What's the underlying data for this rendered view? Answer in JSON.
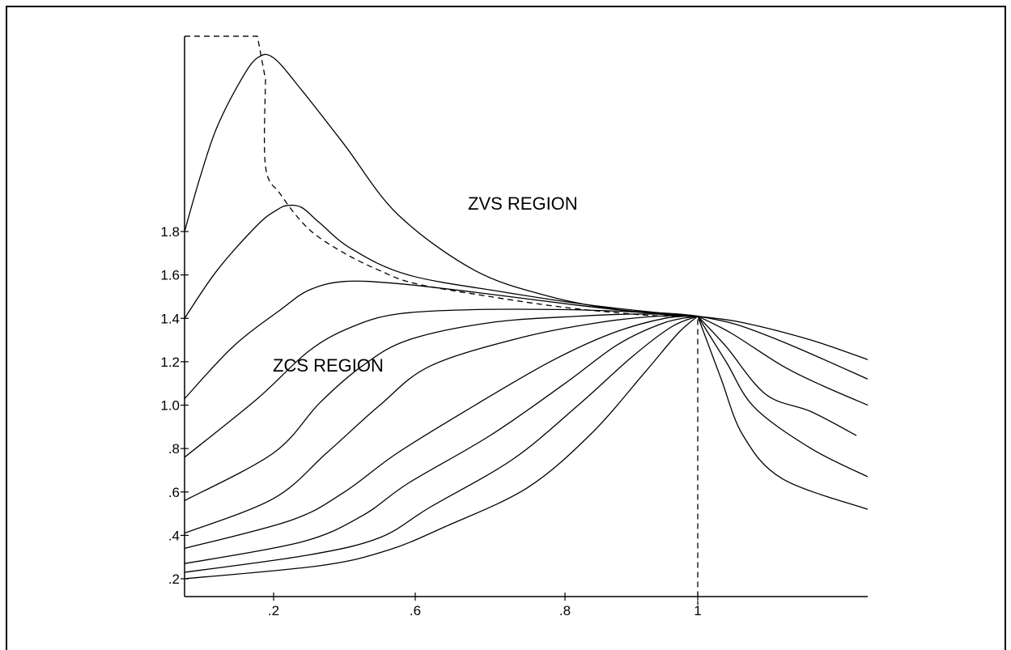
{
  "chart_data": {
    "type": "line",
    "title": "",
    "xlabel": "",
    "ylabel": "",
    "x_ticks": [
      ".2",
      ".6",
      ".8",
      "1"
    ],
    "y_ticks": [
      ".2",
      ".4",
      ".6",
      ".8",
      "1.0",
      "1.2",
      "1.4",
      "1.6",
      "1.8"
    ],
    "grid": false,
    "legend": "none",
    "annotations": [
      "ZVS REGION",
      "ZCS REGION"
    ],
    "series": [
      {
        "values": [
          [
            0.09,
            1.8
          ],
          [
            0.11,
            2.06
          ],
          [
            0.13,
            2.28
          ],
          [
            0.16,
            2.5
          ],
          [
            0.18,
            2.6
          ],
          [
            0.2,
            2.6
          ],
          [
            0.28,
            2.45
          ],
          [
            0.4,
            2.2
          ],
          [
            0.55,
            1.88
          ],
          [
            0.68,
            1.62
          ],
          [
            0.78,
            1.5
          ],
          [
            0.88,
            1.44
          ],
          [
            0.97,
            1.42
          ],
          [
            1.0,
            1.41
          ]
        ]
      },
      {
        "values": [
          [
            0.09,
            1.4
          ],
          [
            0.13,
            1.62
          ],
          [
            0.18,
            1.83
          ],
          [
            0.21,
            1.9
          ],
          [
            0.24,
            1.92
          ],
          [
            0.28,
            1.91
          ],
          [
            0.33,
            1.84
          ],
          [
            0.42,
            1.72
          ],
          [
            0.58,
            1.6
          ],
          [
            0.72,
            1.52
          ],
          [
            0.84,
            1.46
          ],
          [
            0.96,
            1.42
          ],
          [
            1.0,
            1.41
          ]
        ]
      },
      {
        "values": [
          [
            0.09,
            1.03
          ],
          [
            0.15,
            1.27
          ],
          [
            0.22,
            1.44
          ],
          [
            0.3,
            1.53
          ],
          [
            0.4,
            1.57
          ],
          [
            0.55,
            1.56
          ],
          [
            0.68,
            1.52
          ],
          [
            0.82,
            1.46
          ],
          [
            0.94,
            1.42
          ],
          [
            1.0,
            1.41
          ]
        ]
      },
      {
        "values": [
          [
            0.09,
            0.76
          ],
          [
            0.18,
            1.03
          ],
          [
            0.3,
            1.25
          ],
          [
            0.42,
            1.36
          ],
          [
            0.55,
            1.42
          ],
          [
            0.68,
            1.44
          ],
          [
            0.8,
            1.44
          ],
          [
            0.9,
            1.43
          ],
          [
            1.0,
            1.41
          ]
        ]
      },
      {
        "values": [
          [
            0.09,
            0.56
          ],
          [
            0.2,
            0.78
          ],
          [
            0.33,
            1.01
          ],
          [
            0.45,
            1.18
          ],
          [
            0.58,
            1.3
          ],
          [
            0.7,
            1.38
          ],
          [
            0.82,
            1.41
          ],
          [
            0.92,
            1.42
          ],
          [
            1.0,
            1.41
          ]
        ]
      },
      {
        "values": [
          [
            0.09,
            0.41
          ],
          [
            0.2,
            0.57
          ],
          [
            0.35,
            0.78
          ],
          [
            0.5,
            1.0
          ],
          [
            0.62,
            1.18
          ],
          [
            0.74,
            1.31
          ],
          [
            0.85,
            1.38
          ],
          [
            0.94,
            1.41
          ],
          [
            1.0,
            1.41
          ]
        ]
      },
      {
        "values": [
          [
            0.09,
            0.34
          ],
          [
            0.25,
            0.47
          ],
          [
            0.4,
            0.6
          ],
          [
            0.55,
            0.78
          ],
          [
            0.68,
            1.0
          ],
          [
            0.78,
            1.2
          ],
          [
            0.87,
            1.33
          ],
          [
            0.95,
            1.4
          ],
          [
            1.0,
            1.41
          ]
        ]
      },
      {
        "values": [
          [
            0.09,
            0.27
          ],
          [
            0.28,
            0.37
          ],
          [
            0.45,
            0.49
          ],
          [
            0.58,
            0.64
          ],
          [
            0.7,
            0.86
          ],
          [
            0.8,
            1.1
          ],
          [
            0.88,
            1.28
          ],
          [
            0.95,
            1.38
          ],
          [
            1.0,
            1.41
          ]
        ]
      },
      {
        "values": [
          [
            0.09,
            0.23
          ],
          [
            0.3,
            0.31
          ],
          [
            0.5,
            0.39
          ],
          [
            0.62,
            0.53
          ],
          [
            0.73,
            0.75
          ],
          [
            0.82,
            1.0
          ],
          [
            0.9,
            1.22
          ],
          [
            0.96,
            1.36
          ],
          [
            1.0,
            1.41
          ]
        ]
      },
      {
        "values": [
          [
            0.09,
            0.2
          ],
          [
            0.33,
            0.26
          ],
          [
            0.52,
            0.33
          ],
          [
            0.64,
            0.44
          ],
          [
            0.75,
            0.62
          ],
          [
            0.84,
            0.87
          ],
          [
            0.92,
            1.15
          ],
          [
            0.97,
            1.33
          ],
          [
            1.0,
            1.41
          ]
        ]
      },
      {
        "values": [
          [
            1.0,
            1.41
          ],
          [
            1.08,
            1.38
          ],
          [
            1.2,
            1.3
          ],
          [
            1.3,
            1.21
          ]
        ]
      },
      {
        "values": [
          [
            1.0,
            1.41
          ],
          [
            1.07,
            1.37
          ],
          [
            1.17,
            1.27
          ],
          [
            1.3,
            1.12
          ]
        ]
      },
      {
        "values": [
          [
            1.0,
            1.41
          ],
          [
            1.06,
            1.33
          ],
          [
            1.15,
            1.18
          ],
          [
            1.22,
            1.09
          ],
          [
            1.3,
            1.0
          ]
        ]
      },
      {
        "values": [
          [
            1.0,
            1.41
          ],
          [
            1.05,
            1.27
          ],
          [
            1.12,
            1.05
          ],
          [
            1.2,
            0.97
          ],
          [
            1.28,
            0.86
          ]
        ]
      },
      {
        "values": [
          [
            1.0,
            1.41
          ],
          [
            1.05,
            1.2
          ],
          [
            1.1,
            0.99
          ],
          [
            1.2,
            0.8
          ],
          [
            1.3,
            0.67
          ]
        ]
      },
      {
        "values": [
          [
            1.0,
            1.41
          ],
          [
            1.04,
            1.13
          ],
          [
            1.08,
            0.86
          ],
          [
            1.15,
            0.66
          ],
          [
            1.3,
            0.52
          ]
        ]
      }
    ],
    "boundary": [
      [
        0.09,
        2.7
      ],
      [
        0.18,
        2.7
      ],
      [
        0.19,
        2.5
      ],
      [
        0.19,
        2.1
      ],
      [
        0.22,
        1.97
      ],
      [
        0.3,
        1.81
      ],
      [
        0.4,
        1.7
      ],
      [
        0.5,
        1.62
      ],
      [
        0.6,
        1.56
      ],
      [
        0.7,
        1.5
      ],
      [
        0.8,
        1.45
      ],
      [
        0.9,
        1.42
      ],
      [
        0.95,
        1.41
      ],
      [
        1.0,
        1.41
      ],
      [
        1.0,
        0.08
      ]
    ]
  }
}
